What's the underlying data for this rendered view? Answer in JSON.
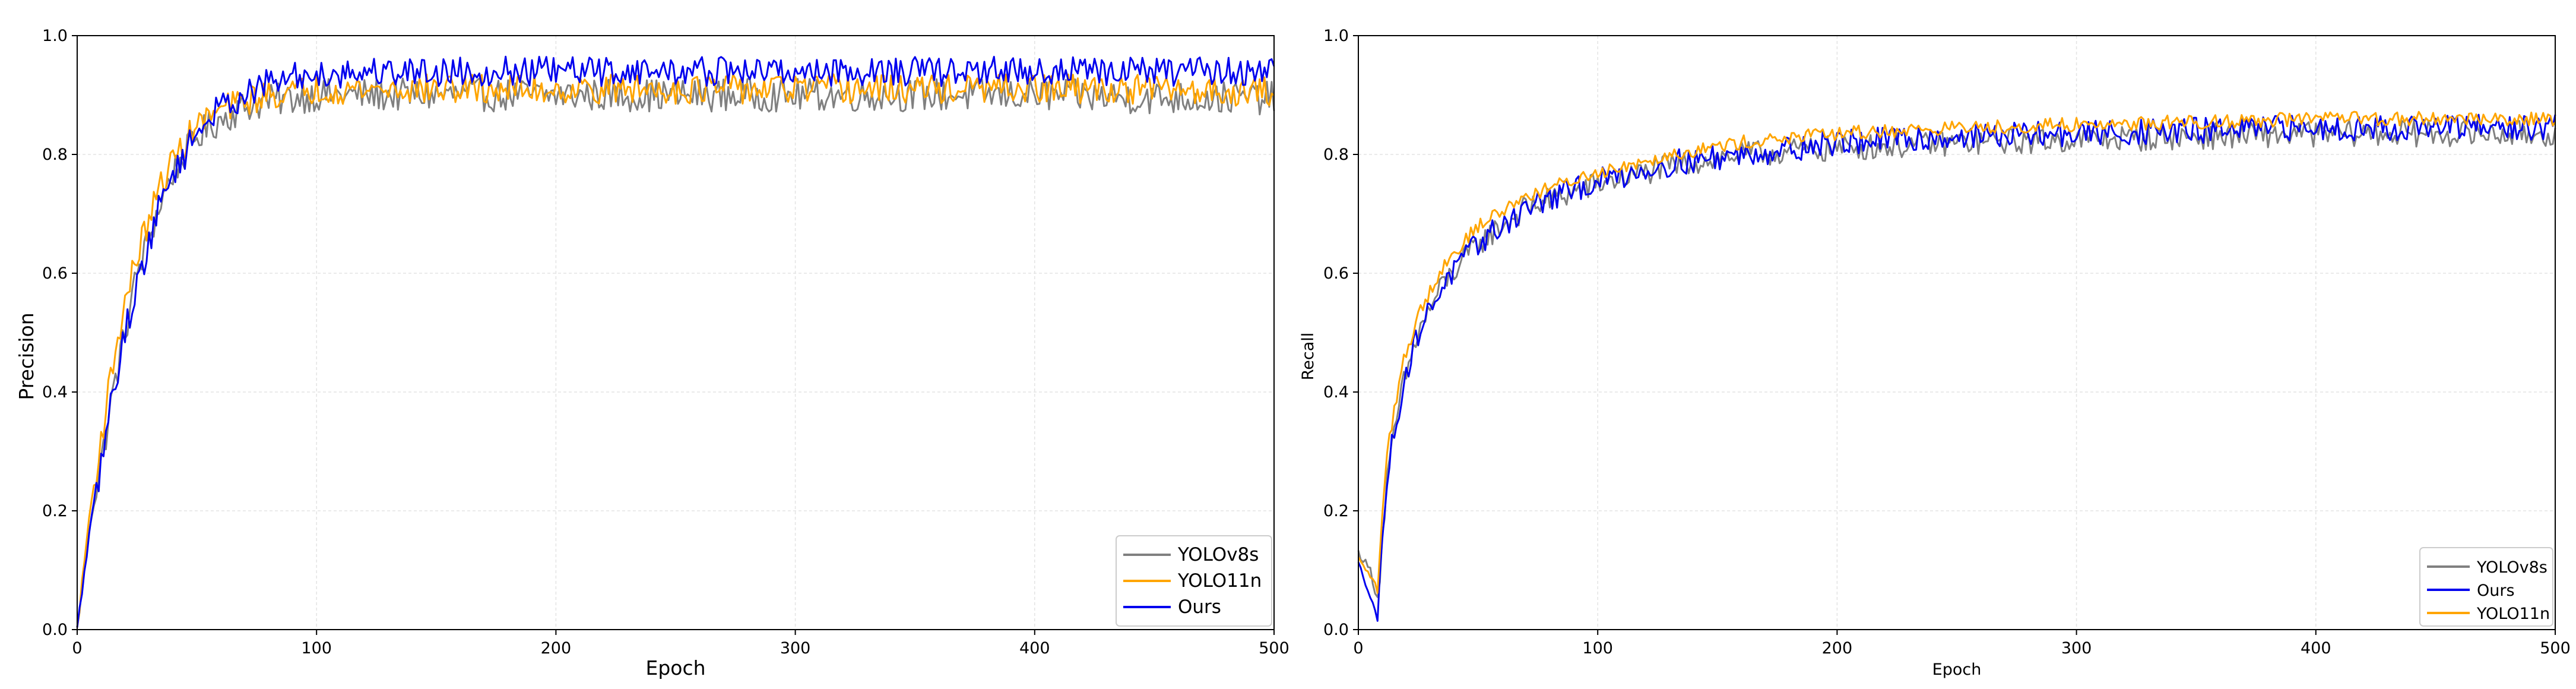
{
  "chart_data": [
    {
      "type": "line",
      "title": "",
      "xlabel": "Epoch",
      "ylabel": "Precision",
      "xlim": [
        0,
        500
      ],
      "ylim": [
        0.0,
        1.0
      ],
      "xticks": [
        "0",
        "100",
        "200",
        "300",
        "400",
        "500"
      ],
      "yticks": [
        "0.0",
        "0.2",
        "0.4",
        "0.6",
        "0.8",
        "1.0"
      ],
      "grid": true,
      "legend_position": "bottom-right",
      "legend_order": [
        "YOLOv8s",
        "YOLO11n",
        "Ours"
      ],
      "series": [
        {
          "name": "YOLOv8s",
          "color": "#808080",
          "x": [
            0,
            5,
            10,
            15,
            20,
            25,
            30,
            35,
            40,
            45,
            50,
            60,
            70,
            80,
            90,
            100,
            125,
            150,
            175,
            200,
            250,
            300,
            350,
            400,
            450,
            500
          ],
          "values": [
            0.0,
            0.17,
            0.28,
            0.4,
            0.5,
            0.6,
            0.66,
            0.72,
            0.77,
            0.8,
            0.83,
            0.86,
            0.88,
            0.89,
            0.895,
            0.9,
            0.9,
            0.9,
            0.9,
            0.9,
            0.9,
            0.9,
            0.9,
            0.9,
            0.895,
            0.895
          ],
          "noise": 0.028
        },
        {
          "name": "YOLO11n",
          "color": "#FFA500",
          "x": [
            0,
            5,
            10,
            15,
            20,
            25,
            30,
            35,
            40,
            45,
            50,
            60,
            70,
            80,
            90,
            100,
            125,
            150,
            175,
            200,
            250,
            300,
            350,
            400,
            450,
            500
          ],
          "values": [
            0.0,
            0.19,
            0.32,
            0.45,
            0.55,
            0.63,
            0.69,
            0.75,
            0.79,
            0.82,
            0.85,
            0.875,
            0.89,
            0.9,
            0.905,
            0.91,
            0.91,
            0.91,
            0.91,
            0.91,
            0.91,
            0.91,
            0.91,
            0.91,
            0.91,
            0.905
          ],
          "noise": 0.025
        },
        {
          "name": "Ours",
          "color": "#0000EE",
          "x": [
            0,
            5,
            10,
            15,
            20,
            25,
            30,
            35,
            40,
            45,
            50,
            60,
            70,
            80,
            90,
            100,
            125,
            150,
            175,
            200,
            250,
            300,
            350,
            400,
            450,
            500
          ],
          "values": [
            0.0,
            0.16,
            0.28,
            0.4,
            0.5,
            0.58,
            0.65,
            0.72,
            0.77,
            0.8,
            0.84,
            0.88,
            0.9,
            0.92,
            0.93,
            0.935,
            0.94,
            0.94,
            0.94,
            0.94,
            0.94,
            0.94,
            0.94,
            0.94,
            0.94,
            0.94
          ],
          "noise": 0.025
        }
      ]
    },
    {
      "type": "line",
      "title": "",
      "xlabel": "Epoch",
      "ylabel": "Recall",
      "xlim": [
        0,
        500
      ],
      "ylim": [
        0.0,
        1.0
      ],
      "xticks": [
        "0",
        "100",
        "200",
        "300",
        "400",
        "500"
      ],
      "yticks": [
        "0.0",
        "0.2",
        "0.4",
        "0.6",
        "0.8",
        "1.0"
      ],
      "grid": true,
      "legend_position": "bottom-right",
      "legend_order": [
        "YOLOv8s",
        "Ours",
        "YOLO11n"
      ],
      "series": [
        {
          "name": "YOLOv8s",
          "color": "#808080",
          "x": [
            0,
            5,
            8,
            12,
            18,
            25,
            35,
            50,
            70,
            100,
            130,
            160,
            200,
            250,
            300,
            350,
            400,
            450,
            500
          ],
          "values": [
            0.13,
            0.1,
            0.05,
            0.25,
            0.4,
            0.5,
            0.58,
            0.65,
            0.71,
            0.75,
            0.78,
            0.8,
            0.81,
            0.82,
            0.825,
            0.83,
            0.835,
            0.835,
            0.835
          ],
          "noise": 0.022
        },
        {
          "name": "Ours",
          "color": "#0000EE",
          "x": [
            0,
            5,
            8,
            12,
            18,
            25,
            35,
            50,
            70,
            100,
            130,
            160,
            200,
            250,
            300,
            350,
            400,
            450,
            500
          ],
          "values": [
            0.11,
            0.06,
            0.02,
            0.26,
            0.4,
            0.5,
            0.58,
            0.65,
            0.71,
            0.755,
            0.785,
            0.8,
            0.82,
            0.83,
            0.835,
            0.84,
            0.845,
            0.845,
            0.845
          ],
          "noise": 0.022
        },
        {
          "name": "YOLO11n",
          "color": "#FFA500",
          "x": [
            0,
            5,
            8,
            12,
            18,
            25,
            35,
            50,
            70,
            100,
            130,
            160,
            200,
            250,
            300,
            350,
            400,
            450,
            500
          ],
          "values": [
            0.12,
            0.09,
            0.07,
            0.3,
            0.44,
            0.53,
            0.61,
            0.68,
            0.73,
            0.77,
            0.8,
            0.82,
            0.835,
            0.845,
            0.85,
            0.855,
            0.86,
            0.86,
            0.86
          ],
          "noise": 0.012
        }
      ]
    }
  ]
}
